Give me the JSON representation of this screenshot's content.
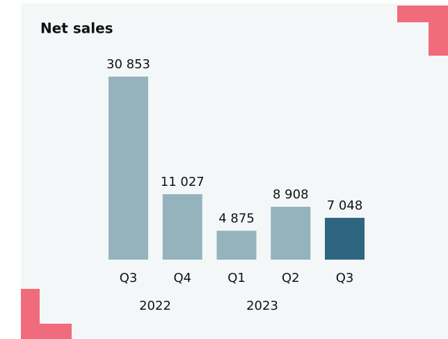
{
  "chart_data": {
    "type": "bar",
    "title": "Net sales",
    "categories": [
      "Q3",
      "Q4",
      "Q1",
      "Q2",
      "Q3"
    ],
    "groups": [
      "2022",
      "2023"
    ],
    "values": [
      30853,
      11027,
      4875,
      8908,
      7048
    ],
    "value_labels": [
      "30 853",
      "11 027",
      "4 875",
      "8 908",
      "7 048"
    ],
    "colors": [
      "#94b3bd",
      "#94b3bd",
      "#94b3bd",
      "#94b3bd",
      "#2e6680"
    ]
  }
}
